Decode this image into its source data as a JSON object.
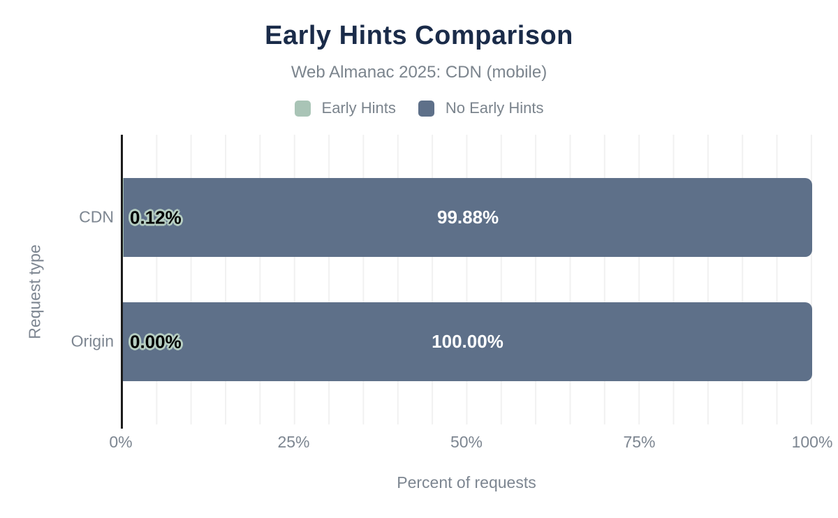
{
  "header": {
    "title": "Early Hints Comparison",
    "subtitle": "Web Almanac 2025: CDN (mobile)"
  },
  "colors": {
    "title_navy": "#1a2b49",
    "early_hints_sage": "#a9c4b6",
    "no_early_hints_slate": "#5e7089",
    "label_halo_sage": "#b6cec2",
    "axis_text_gray": "#7d8691",
    "gridline_gray": "#f1f1f1",
    "axis_line_dark": "#1c1c1c"
  },
  "chart_data": {
    "type": "bar",
    "orientation": "horizontal",
    "stacked": true,
    "title": "Early Hints Comparison",
    "subtitle": "Web Almanac 2025: CDN (mobile)",
    "categories": [
      "CDN",
      "Origin"
    ],
    "series": [
      {
        "name": "Early Hints",
        "color": "#a9c4b6",
        "values": [
          0.12,
          0.0
        ],
        "labels": [
          "0.12%",
          "0.00%"
        ]
      },
      {
        "name": "No Early Hints",
        "color": "#5e7089",
        "values": [
          99.88,
          100.0
        ],
        "labels": [
          "99.88%",
          "100.00%"
        ]
      }
    ],
    "xlabel": "Percent of requests",
    "ylabel": "Request type",
    "xlim": [
      0,
      100
    ],
    "x_ticks": [
      "0%",
      "25%",
      "50%",
      "75%",
      "100%"
    ],
    "grid": "vertical",
    "grid_interval_percent": 5,
    "legend_position": "top"
  }
}
